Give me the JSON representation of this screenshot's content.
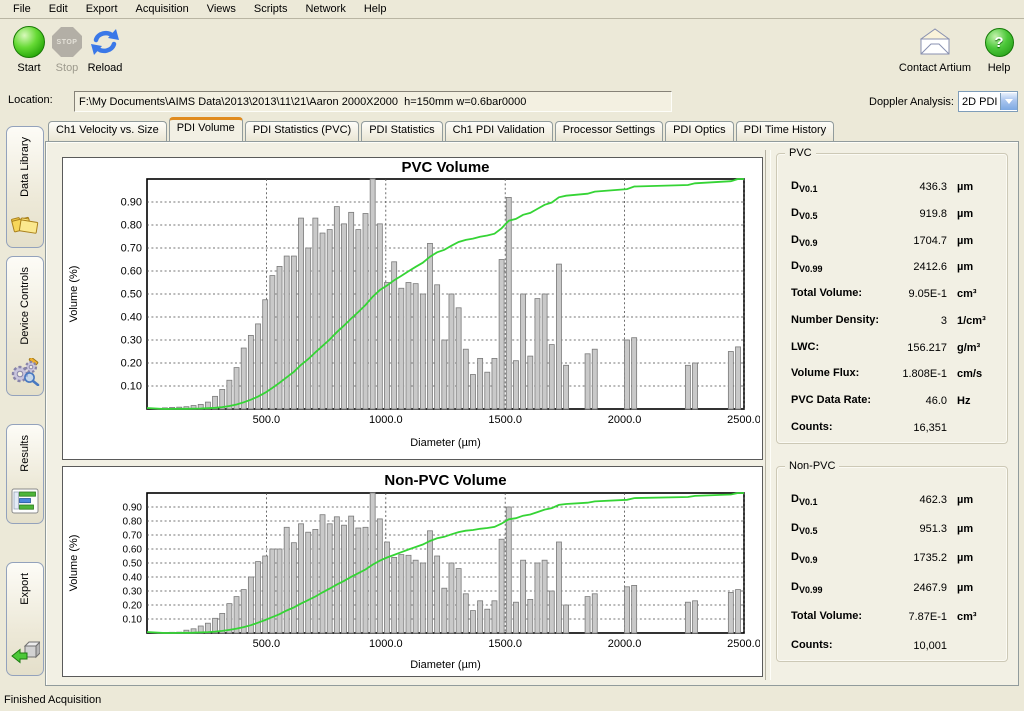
{
  "menu": {
    "items": [
      "File",
      "Edit",
      "Export",
      "Acquisition",
      "Views",
      "Scripts",
      "Network",
      "Help"
    ]
  },
  "toolbar": {
    "start_label": "Start",
    "stop_label": "Stop",
    "stop_glyph_text": "STOP",
    "reload_label": "Reload",
    "contact_label": "Contact Artium",
    "help_label": "Help"
  },
  "location": {
    "label": "Location:",
    "value": "F:\\My Documents\\AIMS Data\\2013\\2013\\11\\21\\Aaron 2000X2000  h=150mm w=0.6bar0000"
  },
  "doppler": {
    "label": "Doppler Analysis:",
    "value": "2D PDI"
  },
  "sidebar": {
    "items": [
      {
        "label": "Data Library",
        "icon": "data-library-icon"
      },
      {
        "label": "Device Controls",
        "icon": "device-controls-icon"
      },
      {
        "label": "Results",
        "icon": "results-icon"
      },
      {
        "label": "Export",
        "icon": "export-icon"
      }
    ]
  },
  "tabs": {
    "items": [
      "Ch1 Velocity vs. Size",
      "PDI Volume",
      "PDI Statistics (PVC)",
      "PDI Statistics",
      "Ch1 PDI Validation",
      "Processor Settings",
      "PDI Optics",
      "PDI Time History"
    ],
    "active": "PDI Volume"
  },
  "stats_pvc": {
    "title": "PVC",
    "rows": [
      {
        "main": "D",
        "sub": "V0.1",
        "value": "436.3",
        "unit": "µm"
      },
      {
        "main": "D",
        "sub": "V0.5",
        "value": "919.8",
        "unit": "µm"
      },
      {
        "main": "D",
        "sub": "V0.9",
        "value": "1704.7",
        "unit": "µm"
      },
      {
        "main": "D",
        "sub": "V0.99",
        "value": "2412.6",
        "unit": "µm"
      },
      {
        "main": "Total Volume:",
        "sub": "",
        "value": "9.05E-1",
        "unit": "cm³"
      },
      {
        "main": "Number Density:",
        "sub": "",
        "value": "3",
        "unit": "1/cm³"
      },
      {
        "main": "LWC:",
        "sub": "",
        "value": "156.217",
        "unit": "g/m³"
      },
      {
        "main": "Volume Flux:",
        "sub": "",
        "value": "1.808E-1",
        "unit": "cm/s"
      },
      {
        "main": "PVC Data Rate:",
        "sub": "",
        "value": "46.0",
        "unit": "Hz"
      },
      {
        "main": "Counts:",
        "sub": "",
        "value": "16,351",
        "unit": ""
      }
    ]
  },
  "stats_nonpvc": {
    "title": "Non-PVC",
    "rows": [
      {
        "main": "D",
        "sub": "V0.1",
        "value": "462.3",
        "unit": "µm"
      },
      {
        "main": "D",
        "sub": "V0.5",
        "value": "951.3",
        "unit": "µm"
      },
      {
        "main": "D",
        "sub": "V0.9",
        "value": "1735.2",
        "unit": "µm"
      },
      {
        "main": "D",
        "sub": "V0.99",
        "value": "2467.9",
        "unit": "µm"
      },
      {
        "main": "Total Volume:",
        "sub": "",
        "value": "7.87E-1",
        "unit": "cm³"
      },
      {
        "main": "Counts:",
        "sub": "",
        "value": "10,001",
        "unit": ""
      }
    ]
  },
  "status": {
    "text": "Finished Acquisition"
  },
  "colors": {
    "window_bg": "#ece9d8",
    "tab_page_bg": "#f2f0e4",
    "active_tab_accent": "#e08b1e",
    "bar_fill": "#c9c9c9",
    "bar_stroke": "#7a7a7a",
    "cumulative_line": "#35d435",
    "grid_line": "#4a4a4a"
  },
  "chart_data": [
    {
      "type": "bar",
      "title": "PVC Volume",
      "xlabel": "Diameter (µm)",
      "ylabel": "Volume (%)",
      "xlim": [
        0,
        2500
      ],
      "ylim": [
        0,
        1.0
      ],
      "xticks": [
        500.0,
        1000.0,
        1500.0,
        2000.0,
        2500.0
      ],
      "yticks": [
        0.1,
        0.2,
        0.3,
        0.4,
        0.5,
        0.6,
        0.7,
        0.8,
        0.9
      ],
      "grid": true,
      "legend": false,
      "bin_width_um": 30,
      "series": [
        {
          "name": "Volume histogram",
          "type": "bar",
          "x": [
            75,
            105,
            135,
            165,
            195,
            225,
            255,
            285,
            315,
            345,
            375,
            405,
            435,
            465,
            495,
            525,
            555,
            585,
            615,
            645,
            675,
            705,
            735,
            765,
            795,
            825,
            855,
            885,
            915,
            945,
            975,
            1005,
            1035,
            1065,
            1095,
            1125,
            1155,
            1185,
            1215,
            1245,
            1275,
            1305,
            1335,
            1365,
            1395,
            1425,
            1455,
            1485,
            1515,
            1545,
            1575,
            1605,
            1635,
            1665,
            1695,
            1725,
            1755,
            1845,
            1875,
            2010,
            2040,
            2265,
            2295,
            2445,
            2475
          ],
          "values": [
            0.005,
            0.007,
            0.008,
            0.01,
            0.015,
            0.02,
            0.03,
            0.055,
            0.085,
            0.125,
            0.18,
            0.265,
            0.32,
            0.37,
            0.475,
            0.58,
            0.62,
            0.665,
            0.665,
            0.83,
            0.7,
            0.83,
            0.765,
            0.78,
            0.88,
            0.805,
            0.855,
            0.78,
            0.85,
            1.0,
            0.805,
            0.55,
            0.64,
            0.525,
            0.55,
            0.545,
            0.5,
            0.72,
            0.54,
            0.3,
            0.5,
            0.44,
            0.26,
            0.15,
            0.22,
            0.16,
            0.22,
            0.65,
            0.92,
            0.21,
            0.5,
            0.23,
            0.48,
            0.5,
            0.28,
            0.63,
            0.19,
            0.24,
            0.26,
            0.3,
            0.31,
            0.19,
            0.2,
            0.25,
            0.27
          ]
        },
        {
          "name": "Cumulative volume",
          "type": "line",
          "derived": "cumsum_normalized_of_bar_series"
        }
      ]
    },
    {
      "type": "bar",
      "title": "Non-PVC Volume",
      "xlabel": "Diameter (µm)",
      "ylabel": "Volume (%)",
      "xlim": [
        0,
        2500
      ],
      "ylim": [
        0,
        1.0
      ],
      "xticks": [
        500.0,
        1000.0,
        1500.0,
        2000.0,
        2500.0
      ],
      "yticks": [
        0.1,
        0.2,
        0.3,
        0.4,
        0.5,
        0.6,
        0.7,
        0.8,
        0.9
      ],
      "grid": true,
      "legend": false,
      "bin_width_um": 30,
      "series": [
        {
          "name": "Volume histogram",
          "type": "bar",
          "x": [
            75,
            105,
            135,
            165,
            195,
            225,
            255,
            285,
            315,
            345,
            375,
            405,
            435,
            465,
            495,
            525,
            555,
            585,
            615,
            645,
            675,
            705,
            735,
            765,
            795,
            825,
            855,
            885,
            915,
            945,
            975,
            1005,
            1035,
            1065,
            1095,
            1125,
            1155,
            1185,
            1215,
            1245,
            1275,
            1305,
            1335,
            1365,
            1395,
            1425,
            1455,
            1485,
            1515,
            1545,
            1575,
            1605,
            1635,
            1665,
            1695,
            1725,
            1755,
            1845,
            1875,
            2010,
            2040,
            2265,
            2295,
            2445,
            2475
          ],
          "values": [
            0.004,
            0.005,
            0.006,
            0.02,
            0.03,
            0.05,
            0.07,
            0.105,
            0.14,
            0.21,
            0.26,
            0.31,
            0.4,
            0.51,
            0.55,
            0.6,
            0.6,
            0.755,
            0.645,
            0.78,
            0.72,
            0.74,
            0.845,
            0.78,
            0.83,
            0.77,
            0.835,
            0.75,
            0.755,
            1.0,
            0.815,
            0.65,
            0.54,
            0.56,
            0.555,
            0.52,
            0.5,
            0.73,
            0.55,
            0.32,
            0.5,
            0.46,
            0.28,
            0.16,
            0.23,
            0.17,
            0.23,
            0.67,
            0.9,
            0.22,
            0.52,
            0.24,
            0.5,
            0.52,
            0.3,
            0.65,
            0.2,
            0.26,
            0.28,
            0.33,
            0.34,
            0.22,
            0.23,
            0.29,
            0.31
          ]
        },
        {
          "name": "Cumulative volume",
          "type": "line",
          "derived": "cumsum_normalized_of_bar_series"
        }
      ]
    }
  ]
}
